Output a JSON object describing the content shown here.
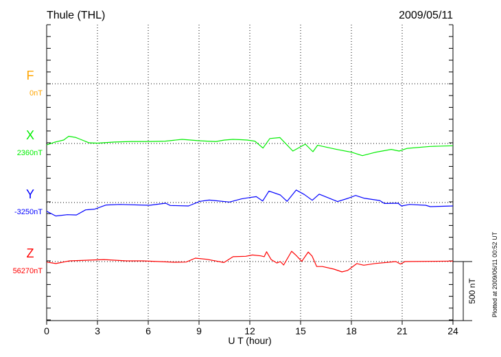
{
  "header": {
    "station": "Thule (THL)",
    "date": "2009/05/11"
  },
  "footer_note": "Plotted at 2009/06/11 00:52 UT",
  "chart_data": {
    "type": "line",
    "title": "Thule (THL)",
    "xlabel": "U T (hour)",
    "xlim": [
      0,
      24
    ],
    "xticks": [
      "0",
      "3",
      "6",
      "9",
      "12",
      "15",
      "18",
      "21",
      "24"
    ],
    "grid": true,
    "scale_bar": {
      "value": 500,
      "label": "500 nT"
    },
    "y_units_per_tick": 100,
    "series": [
      {
        "name": "F",
        "baseline_label": "0nT",
        "color": "#ffa500",
        "points": []
      },
      {
        "name": "X",
        "baseline_label": "2360nT",
        "color": "#00ee00",
        "points": [
          [
            0,
            -12
          ],
          [
            0.5,
            12
          ],
          [
            1,
            29
          ],
          [
            1.3,
            61
          ],
          [
            1.7,
            52
          ],
          [
            2,
            35
          ],
          [
            2.5,
            6
          ],
          [
            3,
            3
          ],
          [
            4,
            12
          ],
          [
            5,
            17
          ],
          [
            6,
            17
          ],
          [
            7,
            20
          ],
          [
            8,
            35
          ],
          [
            9,
            23
          ],
          [
            9.5,
            20
          ],
          [
            10,
            17
          ],
          [
            10.5,
            29
          ],
          [
            11,
            35
          ],
          [
            11.5,
            32
          ],
          [
            11.84,
            29
          ],
          [
            12.3,
            20
          ],
          [
            12.78,
            -39
          ],
          [
            13.18,
            42
          ],
          [
            13.78,
            50
          ],
          [
            14.54,
            -64
          ],
          [
            15.28,
            -6
          ],
          [
            15.73,
            -70
          ],
          [
            16.0,
            -15
          ],
          [
            17.1,
            -49
          ],
          [
            18.04,
            -75
          ],
          [
            18.65,
            -103
          ],
          [
            19.4,
            -75
          ],
          [
            20.35,
            -50
          ],
          [
            20.82,
            -64
          ],
          [
            21.3,
            -41
          ],
          [
            22.65,
            -25
          ],
          [
            24,
            -19
          ]
        ]
      },
      {
        "name": "Y",
        "baseline_label": "-3250nT",
        "color": "#0000ff",
        "points": [
          [
            0,
            -74
          ],
          [
            0.54,
            -114
          ],
          [
            1.22,
            -103
          ],
          [
            1.76,
            -105
          ],
          [
            2.3,
            -62
          ],
          [
            2.84,
            -56
          ],
          [
            3.51,
            -21
          ],
          [
            4.32,
            -16
          ],
          [
            6.08,
            -23
          ],
          [
            7.03,
            -6
          ],
          [
            7.3,
            -25
          ],
          [
            8.38,
            -29
          ],
          [
            9.05,
            10
          ],
          [
            9.6,
            21
          ],
          [
            10.8,
            4
          ],
          [
            11.5,
            31
          ],
          [
            11.84,
            39
          ],
          [
            12.38,
            50
          ],
          [
            12.76,
            13
          ],
          [
            13.13,
            97
          ],
          [
            13.8,
            64
          ],
          [
            14.2,
            10
          ],
          [
            14.74,
            106
          ],
          [
            15.22,
            68
          ],
          [
            15.69,
            19
          ],
          [
            16.1,
            71
          ],
          [
            17.18,
            8
          ],
          [
            17.78,
            35
          ],
          [
            18.25,
            60
          ],
          [
            18.73,
            37
          ],
          [
            19.68,
            17
          ],
          [
            19.95,
            -8
          ],
          [
            20.76,
            -6
          ],
          [
            20.96,
            -29
          ],
          [
            21.44,
            -16
          ],
          [
            22.39,
            -23
          ],
          [
            22.66,
            -35
          ],
          [
            24,
            -29
          ]
        ]
      },
      {
        "name": "Z",
        "baseline_label": "56270nT",
        "color": "#ff0000",
        "points": [
          [
            0,
            -4
          ],
          [
            0.54,
            -17
          ],
          [
            1.35,
            6
          ],
          [
            3.38,
            17
          ],
          [
            4.73,
            6
          ],
          [
            5.68,
            6
          ],
          [
            7.57,
            -6
          ],
          [
            8.24,
            -4
          ],
          [
            8.78,
            29
          ],
          [
            9.46,
            19
          ],
          [
            10.47,
            -8
          ],
          [
            11.01,
            41
          ],
          [
            11.76,
            45
          ],
          [
            12.16,
            56
          ],
          [
            12.65,
            48
          ],
          [
            12.85,
            41
          ],
          [
            12.99,
            83
          ],
          [
            13.26,
            17
          ],
          [
            13.6,
            -12
          ],
          [
            13.8,
            0
          ],
          [
            14.0,
            -29
          ],
          [
            14.47,
            87
          ],
          [
            14.74,
            52
          ],
          [
            15.07,
            2
          ],
          [
            15.45,
            81
          ],
          [
            15.68,
            46
          ],
          [
            15.95,
            -41
          ],
          [
            16.29,
            -42
          ],
          [
            16.97,
            -64
          ],
          [
            17.44,
            -87
          ],
          [
            17.78,
            -75
          ],
          [
            18.32,
            -17
          ],
          [
            18.73,
            -31
          ],
          [
            19.41,
            -16
          ],
          [
            20.63,
            0
          ],
          [
            20.9,
            -21
          ],
          [
            21.17,
            0
          ],
          [
            24,
            4
          ]
        ]
      }
    ]
  }
}
